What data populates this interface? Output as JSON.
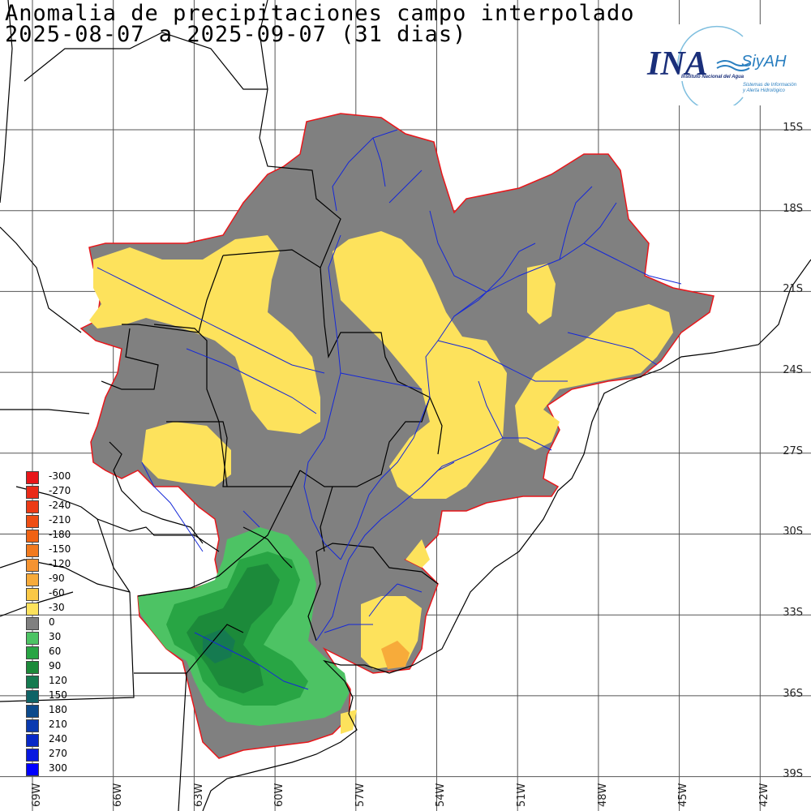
{
  "title_line1": "Anomalia de precipitaciones campo interpolado",
  "title_line2": "2025-08-07 a 2025-09-07 (31 dias)",
  "logo": {
    "acronym": "INA",
    "system": "SiyAH",
    "institution": "Instituto Nacional del Agua",
    "subtitle_1": "Sistemas de Información",
    "subtitle_2": "y Alerta Hidrológico"
  },
  "latitude_labels": [
    "15S",
    "18S",
    "21S",
    "24S",
    "27S",
    "30S",
    "33S",
    "36S",
    "39S"
  ],
  "longitude_labels": [
    "69W",
    "66W",
    "63W",
    "60W",
    "57W",
    "54W",
    "51W",
    "48W",
    "45W",
    "42W"
  ],
  "legend": [
    {
      "label": "-300",
      "color": "#e8161a"
    },
    {
      "label": "-270",
      "color": "#ea2a18"
    },
    {
      "label": "-240",
      "color": "#ec3b16"
    },
    {
      "label": "-210",
      "color": "#ee4e14"
    },
    {
      "label": "-180",
      "color": "#f06213"
    },
    {
      "label": "-150",
      "color": "#f27a1e"
    },
    {
      "label": "-120",
      "color": "#f59331"
    },
    {
      "label": "-90",
      "color": "#f7ab3a"
    },
    {
      "label": "-60",
      "color": "#fac846"
    },
    {
      "label": "-30",
      "color": "#fde25c"
    },
    {
      "label": "0",
      "color": "#808080"
    },
    {
      "label": "30",
      "color": "#4dc364"
    },
    {
      "label": "60",
      "color": "#28a544"
    },
    {
      "label": "90",
      "color": "#1c8a3a"
    },
    {
      "label": "120",
      "color": "#157a50"
    },
    {
      "label": "150",
      "color": "#0f6366"
    },
    {
      "label": "180",
      "color": "#0c4a8c"
    },
    {
      "label": "210",
      "color": "#0a3ab0"
    },
    {
      "label": "240",
      "color": "#0828c8"
    },
    {
      "label": "270",
      "color": "#0818e0"
    },
    {
      "label": "300",
      "color": "#0000ff"
    }
  ]
}
